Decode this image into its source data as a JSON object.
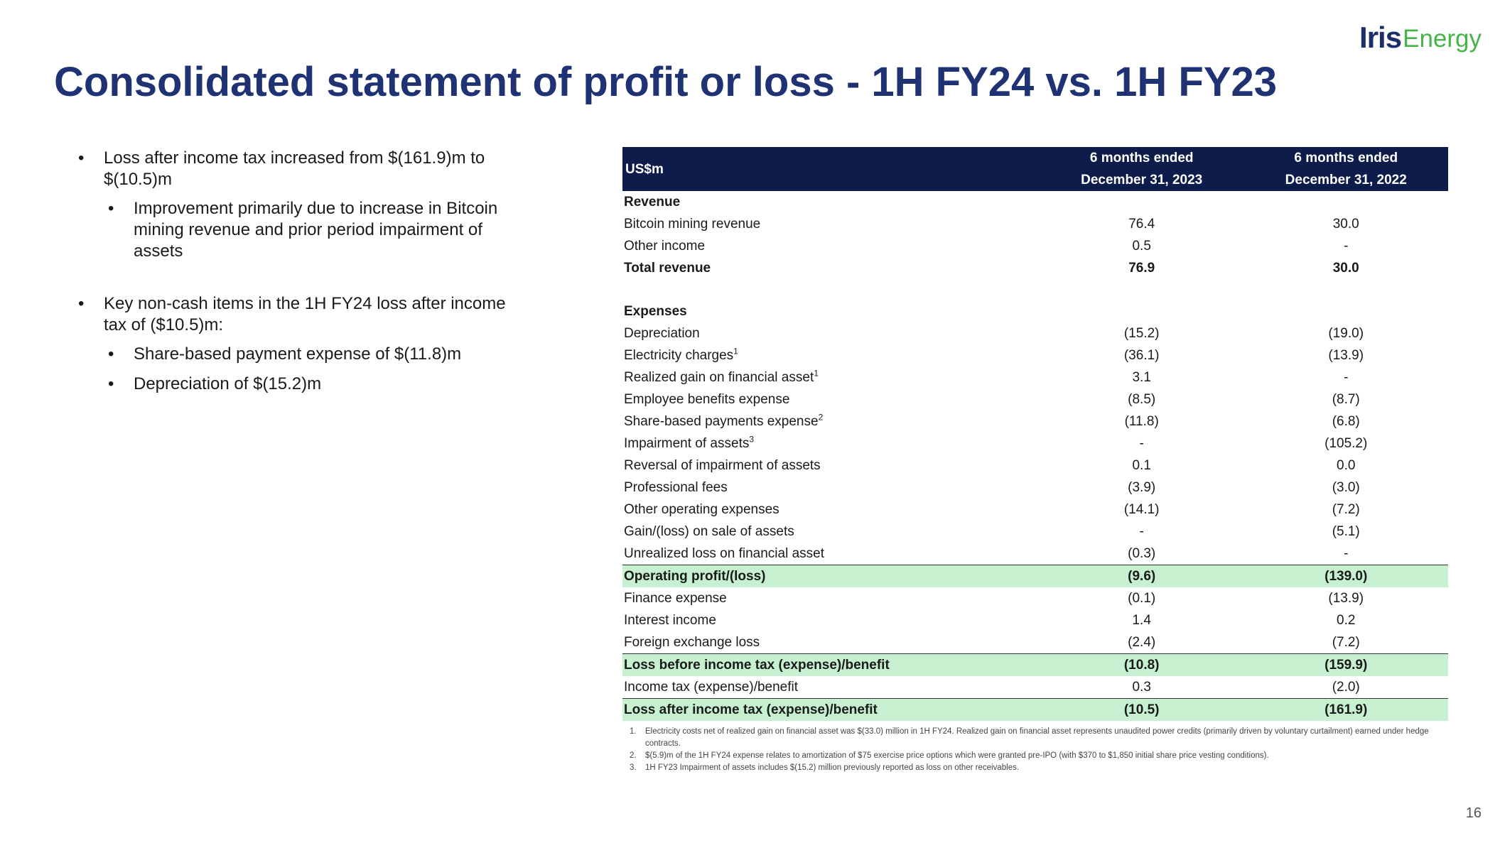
{
  "logo": {
    "part1": "Iris",
    "part2": "Energy"
  },
  "title": "Consolidated statement of profit or loss - 1H FY24 vs. 1H FY23",
  "bullets": [
    {
      "text": "Loss after income tax increased from $(161.9)m to $(10.5)m",
      "sub": [
        "Improvement primarily due to increase in Bitcoin mining revenue and prior period impairment of assets"
      ]
    },
    {
      "text": "Key non-cash items in the 1H FY24 loss after income tax of ($10.5)m:",
      "sub": [
        "Share-based payment expense of $(11.8)m",
        "Depreciation of $(15.2)m"
      ]
    }
  ],
  "table": {
    "header": {
      "label": "US$m",
      "col1": {
        "line1": "6 months ended",
        "line2": "December 31, 2023"
      },
      "col2": {
        "line1": "6 months ended",
        "line2": "December 31, 2022"
      }
    },
    "rows": [
      {
        "label": "Revenue",
        "v1": "",
        "v2": ""
      },
      {
        "label": "Bitcoin mining revenue",
        "v1": "76.4",
        "v2": "30.0"
      },
      {
        "label": "Other income",
        "v1": "0.5",
        "v2": "-"
      },
      {
        "label": "Total revenue",
        "v1": "76.9",
        "v2": "30.0"
      },
      {
        "label": "Expenses",
        "v1": "",
        "v2": ""
      },
      {
        "label": "Depreciation",
        "v1": "(15.2)",
        "v2": "(19.0)"
      },
      {
        "label": "Electricity charges",
        "sup": "1",
        "v1": "(36.1)",
        "v2": "(13.9)"
      },
      {
        "label": "Realized gain on financial asset",
        "sup": "1",
        "v1": "3.1",
        "v2": "-"
      },
      {
        "label": "Employee benefits expense",
        "v1": "(8.5)",
        "v2": "(8.7)"
      },
      {
        "label": "Share-based payments expense",
        "sup": "2",
        "v1": "(11.8)",
        "v2": "(6.8)"
      },
      {
        "label": "Impairment of assets",
        "sup": "3",
        "v1": "-",
        "v2": "(105.2)"
      },
      {
        "label": "Reversal of impairment of assets",
        "v1": "0.1",
        "v2": "0.0"
      },
      {
        "label": "Professional fees",
        "v1": "(3.9)",
        "v2": "(3.0)"
      },
      {
        "label": "Other operating expenses",
        "v1": "(14.1)",
        "v2": "(7.2)"
      },
      {
        "label": "Gain/(loss) on sale of assets",
        "v1": "-",
        "v2": "(5.1)"
      },
      {
        "label": "Unrealized loss on financial asset",
        "v1": "(0.3)",
        "v2": "-"
      },
      {
        "label": "Operating profit/(loss)",
        "v1": "(9.6)",
        "v2": "(139.0)"
      },
      {
        "label": "Finance expense",
        "v1": "(0.1)",
        "v2": "(13.9)"
      },
      {
        "label": "Interest income",
        "v1": "1.4",
        "v2": "0.2"
      },
      {
        "label": "Foreign exchange loss",
        "v1": "(2.4)",
        "v2": "(7.2)"
      },
      {
        "label": "Loss before income tax (expense)/benefit",
        "v1": "(10.8)",
        "v2": "(159.9)"
      },
      {
        "label": "Income tax (expense)/benefit",
        "v1": "0.3",
        "v2": "(2.0)"
      },
      {
        "label": "Loss after income tax (expense)/benefit",
        "v1": "(10.5)",
        "v2": "(161.9)"
      }
    ]
  },
  "footnotes": [
    {
      "num": "1.",
      "text": "Electricity costs net of realized gain on financial asset was $(33.0) million in 1H FY24. Realized gain on financial asset represents unaudited power credits (primarily driven by voluntary curtailment) earned under hedge contracts."
    },
    {
      "num": "2.",
      "text": "$(5.9)m of the 1H FY24 expense relates to amortization of $75 exercise price options which were granted pre-IPO (with $370 to $1,850 initial share price vesting conditions)."
    },
    {
      "num": "3.",
      "text": "1H FY23 Impairment of assets includes $(15.2) million previously reported as loss on other receivables."
    }
  ],
  "page_number": "16",
  "colors": {
    "title": "#1f3273",
    "header_bg": "#0e1c4b",
    "highlight": "#c6f0d0",
    "logo_green": "#46b549"
  }
}
